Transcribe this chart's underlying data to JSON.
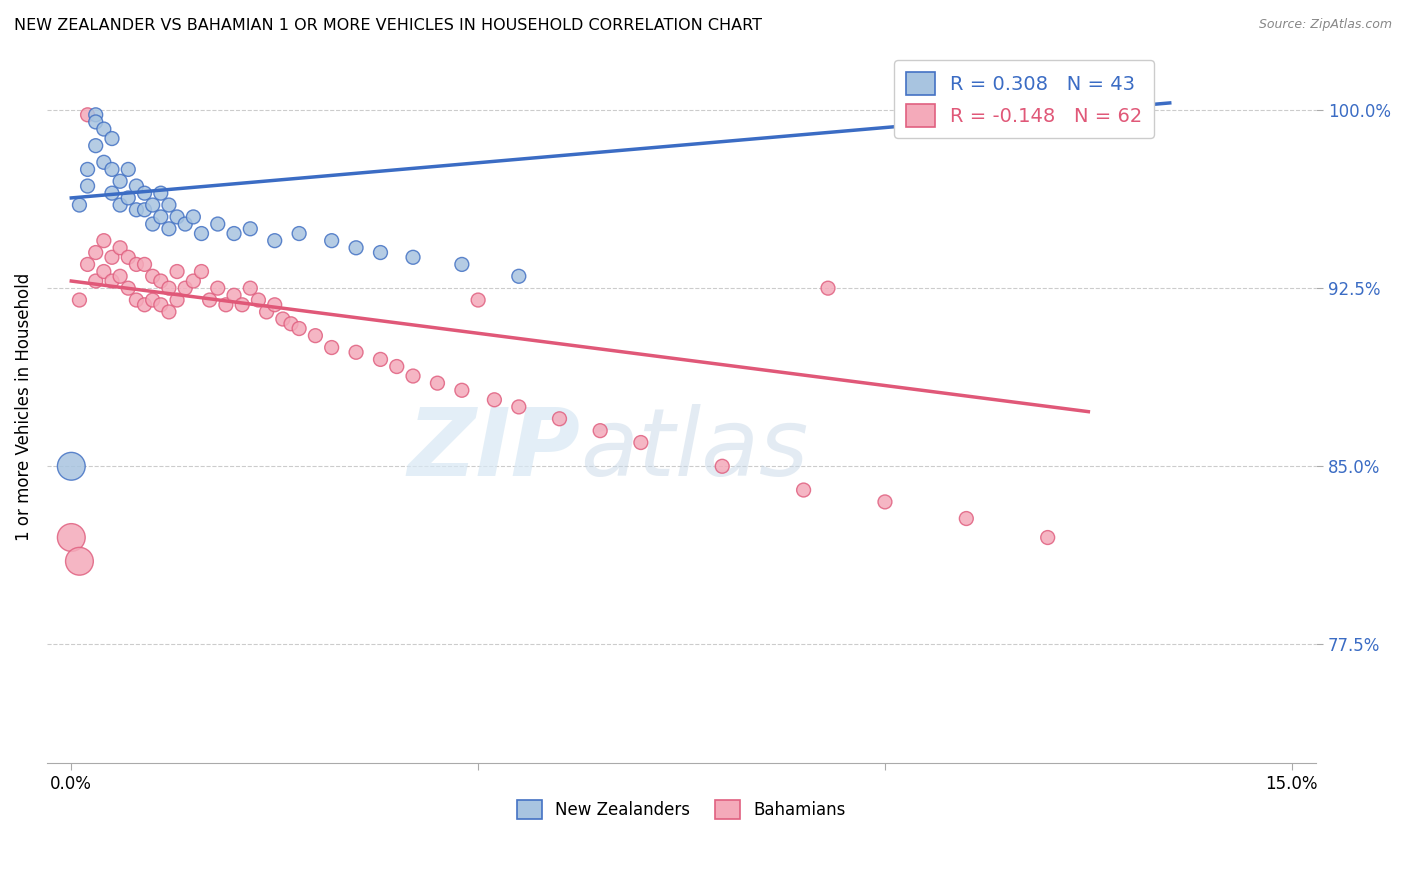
{
  "title": "NEW ZEALANDER VS BAHAMIAN 1 OR MORE VEHICLES IN HOUSEHOLD CORRELATION CHART",
  "source": "Source: ZipAtlas.com",
  "ylabel": "1 or more Vehicles in Household",
  "xlim": [
    -0.003,
    0.153
  ],
  "ylim": [
    0.725,
    1.025
  ],
  "yticks": [
    0.775,
    0.85,
    0.925,
    1.0
  ],
  "ytick_labels": [
    "77.5%",
    "85.0%",
    "92.5%",
    "100.0%"
  ],
  "xtick_positions": [
    0.0,
    0.05,
    0.1,
    0.15
  ],
  "xtick_labels": [
    "0.0%",
    "",
    "",
    "15.0%"
  ],
  "legend_label1": "New Zealanders",
  "legend_label2": "Bahamians",
  "R_nz": 0.308,
  "N_nz": 43,
  "R_bah": -0.148,
  "N_bah": 62,
  "color_nz": "#A8C4E0",
  "color_bah": "#F4AABA",
  "edge_nz": "#4472C4",
  "edge_bah": "#E06080",
  "line_color_nz": "#3B6CC4",
  "line_color_bah": "#E05878",
  "watermark_zip": "ZIP",
  "watermark_atlas": "atlas",
  "nz_x": [
    0.001,
    0.002,
    0.002,
    0.003,
    0.003,
    0.003,
    0.004,
    0.004,
    0.005,
    0.005,
    0.005,
    0.006,
    0.006,
    0.007,
    0.007,
    0.008,
    0.008,
    0.009,
    0.009,
    0.01,
    0.01,
    0.011,
    0.011,
    0.012,
    0.012,
    0.013,
    0.014,
    0.015,
    0.016,
    0.018,
    0.02,
    0.022,
    0.025,
    0.028,
    0.032,
    0.035,
    0.038,
    0.042,
    0.048,
    0.055,
    0.0,
    0.13,
    0.132
  ],
  "nz_y": [
    0.96,
    0.975,
    0.968,
    0.998,
    0.995,
    0.985,
    0.992,
    0.978,
    0.988,
    0.975,
    0.965,
    0.97,
    0.96,
    0.975,
    0.963,
    0.968,
    0.958,
    0.965,
    0.958,
    0.96,
    0.952,
    0.965,
    0.955,
    0.96,
    0.95,
    0.955,
    0.952,
    0.955,
    0.948,
    0.952,
    0.948,
    0.95,
    0.945,
    0.948,
    0.945,
    0.942,
    0.94,
    0.938,
    0.935,
    0.93,
    0.85,
    0.998,
    0.997
  ],
  "nz_size": [
    100,
    100,
    100,
    100,
    100,
    100,
    100,
    100,
    100,
    100,
    100,
    100,
    100,
    100,
    100,
    100,
    100,
    100,
    100,
    100,
    100,
    100,
    100,
    100,
    100,
    100,
    100,
    100,
    100,
    100,
    100,
    100,
    100,
    100,
    100,
    100,
    100,
    100,
    100,
    100,
    400,
    100,
    100
  ],
  "bah_x": [
    0.001,
    0.002,
    0.003,
    0.003,
    0.004,
    0.004,
    0.005,
    0.005,
    0.006,
    0.006,
    0.007,
    0.007,
    0.008,
    0.008,
    0.009,
    0.009,
    0.01,
    0.01,
    0.011,
    0.011,
    0.012,
    0.012,
    0.013,
    0.013,
    0.014,
    0.015,
    0.016,
    0.017,
    0.018,
    0.019,
    0.02,
    0.021,
    0.022,
    0.023,
    0.024,
    0.025,
    0.026,
    0.027,
    0.028,
    0.03,
    0.032,
    0.035,
    0.038,
    0.04,
    0.042,
    0.045,
    0.048,
    0.052,
    0.055,
    0.06,
    0.065,
    0.07,
    0.08,
    0.09,
    0.1,
    0.11,
    0.12,
    0.0,
    0.001,
    0.002,
    0.05,
    0.093
  ],
  "bah_y": [
    0.92,
    0.935,
    0.94,
    0.928,
    0.945,
    0.932,
    0.938,
    0.928,
    0.942,
    0.93,
    0.938,
    0.925,
    0.935,
    0.92,
    0.935,
    0.918,
    0.93,
    0.92,
    0.928,
    0.918,
    0.925,
    0.915,
    0.92,
    0.932,
    0.925,
    0.928,
    0.932,
    0.92,
    0.925,
    0.918,
    0.922,
    0.918,
    0.925,
    0.92,
    0.915,
    0.918,
    0.912,
    0.91,
    0.908,
    0.905,
    0.9,
    0.898,
    0.895,
    0.892,
    0.888,
    0.885,
    0.882,
    0.878,
    0.875,
    0.87,
    0.865,
    0.86,
    0.85,
    0.84,
    0.835,
    0.828,
    0.82,
    0.82,
    0.81,
    0.998,
    0.92,
    0.925
  ],
  "bah_size": [
    100,
    100,
    100,
    100,
    100,
    100,
    100,
    100,
    100,
    100,
    100,
    100,
    100,
    100,
    100,
    100,
    100,
    100,
    100,
    100,
    100,
    100,
    100,
    100,
    100,
    100,
    100,
    100,
    100,
    100,
    100,
    100,
    100,
    100,
    100,
    100,
    100,
    100,
    100,
    100,
    100,
    100,
    100,
    100,
    100,
    100,
    100,
    100,
    100,
    100,
    100,
    100,
    100,
    100,
    100,
    100,
    100,
    400,
    400,
    100,
    100,
    100
  ],
  "nz_line_x": [
    0.0,
    0.135
  ],
  "nz_line_y": [
    0.963,
    1.003
  ],
  "bah_line_x": [
    0.0,
    0.125
  ],
  "bah_line_y": [
    0.928,
    0.873
  ]
}
